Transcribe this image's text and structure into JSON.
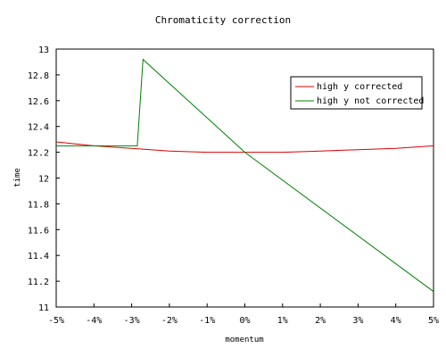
{
  "chart_data": {
    "type": "line",
    "title": "Chromaticity correction",
    "xlabel": "momentum",
    "ylabel": "time",
    "xlim": [
      -5,
      5
    ],
    "ylim": [
      11,
      13
    ],
    "x_tick_values": [
      -5,
      -4,
      -3,
      -2,
      -1,
      0,
      1,
      2,
      3,
      4,
      5
    ],
    "x_tick_labels": [
      "-5%",
      "-4%",
      "-3%",
      "-2%",
      "-1%",
      "0%",
      "1%",
      "2%",
      "3%",
      "4%",
      "5%"
    ],
    "y_tick_values": [
      11,
      11.2,
      11.4,
      11.6,
      11.8,
      12,
      12.2,
      12.4,
      12.6,
      12.8,
      13
    ],
    "y_tick_labels": [
      "11",
      "11.2",
      "11.4",
      "11.6",
      "11.8",
      "12",
      "12.2",
      "12.4",
      "12.6",
      "12.8",
      "13"
    ],
    "grid": false,
    "legend_position": "top-right",
    "series": [
      {
        "name": "high y corrected",
        "color": "#dd0000",
        "x": [
          -5,
          -4,
          -3,
          -2,
          -1,
          0,
          1,
          2,
          3,
          4,
          5
        ],
        "y": [
          12.28,
          12.25,
          12.23,
          12.21,
          12.2,
          12.2,
          12.2,
          12.21,
          12.22,
          12.23,
          12.25
        ]
      },
      {
        "name": "high y not corrected",
        "color": "#008000",
        "x": [
          -5,
          -2.85,
          -2.7,
          0,
          5
        ],
        "y": [
          12.25,
          12.25,
          12.92,
          12.2,
          11.12
        ]
      }
    ]
  }
}
